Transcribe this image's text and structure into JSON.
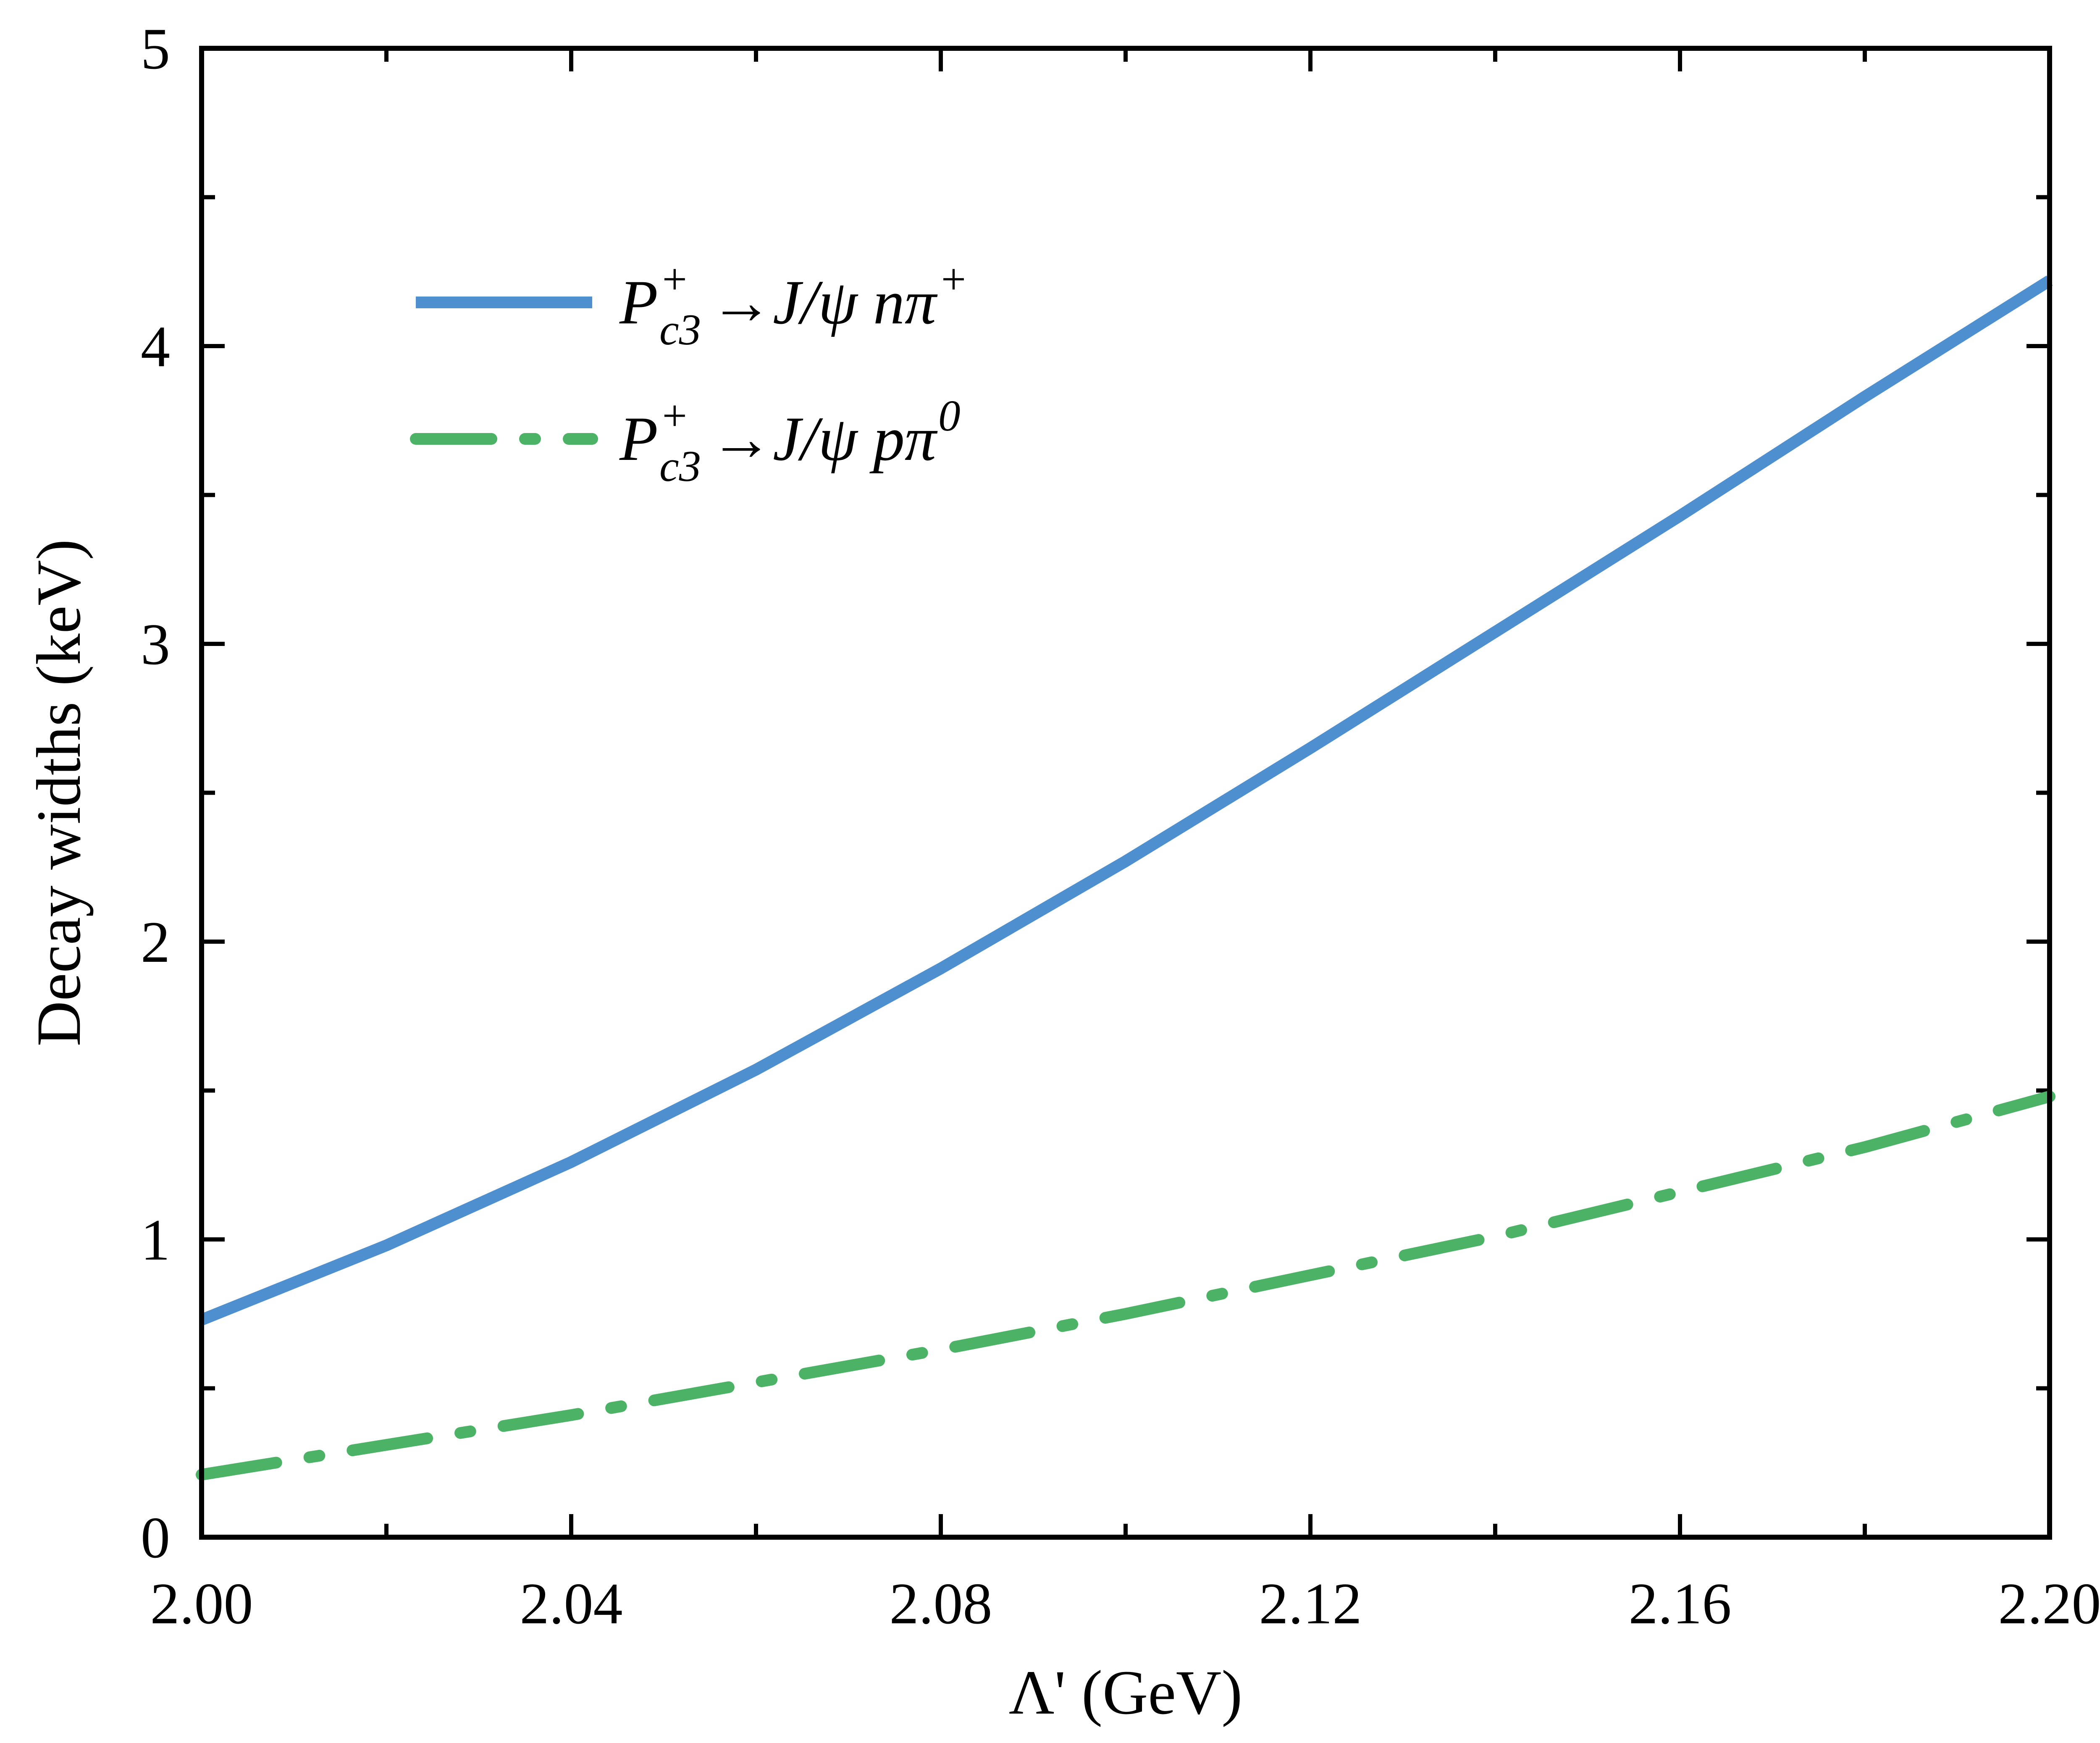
{
  "chart_data": {
    "type": "line",
    "title": "",
    "xlabel": "Λ' (GeV)",
    "ylabel": "Decay widths (keV)",
    "xlim": [
      2.0,
      2.2
    ],
    "ylim": [
      0,
      5
    ],
    "x_ticks": [
      "2.00",
      "2.04",
      "2.08",
      "2.12",
      "2.16",
      "2.20"
    ],
    "y_ticks": [
      "0",
      "1",
      "2",
      "3",
      "4",
      "5"
    ],
    "grid": false,
    "legend_position": "top-left",
    "x": [
      2.0,
      2.02,
      2.04,
      2.06,
      2.08,
      2.1,
      2.12,
      2.14,
      2.16,
      2.18,
      2.2
    ],
    "series": [
      {
        "name": "P_c3^+ → J/ψ n π^+",
        "label": {
          "P": "P",
          "sup": "+",
          "sub": "c3",
          "rest": "→J/ψ nπ",
          "rest_sup": "+"
        },
        "color": "#4E8FD0",
        "style": "solid",
        "values": [
          0.73,
          0.98,
          1.26,
          1.57,
          1.91,
          2.27,
          2.65,
          3.04,
          3.43,
          3.83,
          4.22
        ]
      },
      {
        "name": "P_c3^+ → J/ψ p π^0",
        "label": {
          "P": "P",
          "sup": "+",
          "sub": "c3",
          "rest": "→J/ψ pπ",
          "rest_sup": "0"
        },
        "color": "#4CB366",
        "style": "dash-dot",
        "values": [
          0.21,
          0.31,
          0.41,
          0.52,
          0.63,
          0.75,
          0.88,
          1.01,
          1.16,
          1.31,
          1.48
        ]
      }
    ]
  }
}
